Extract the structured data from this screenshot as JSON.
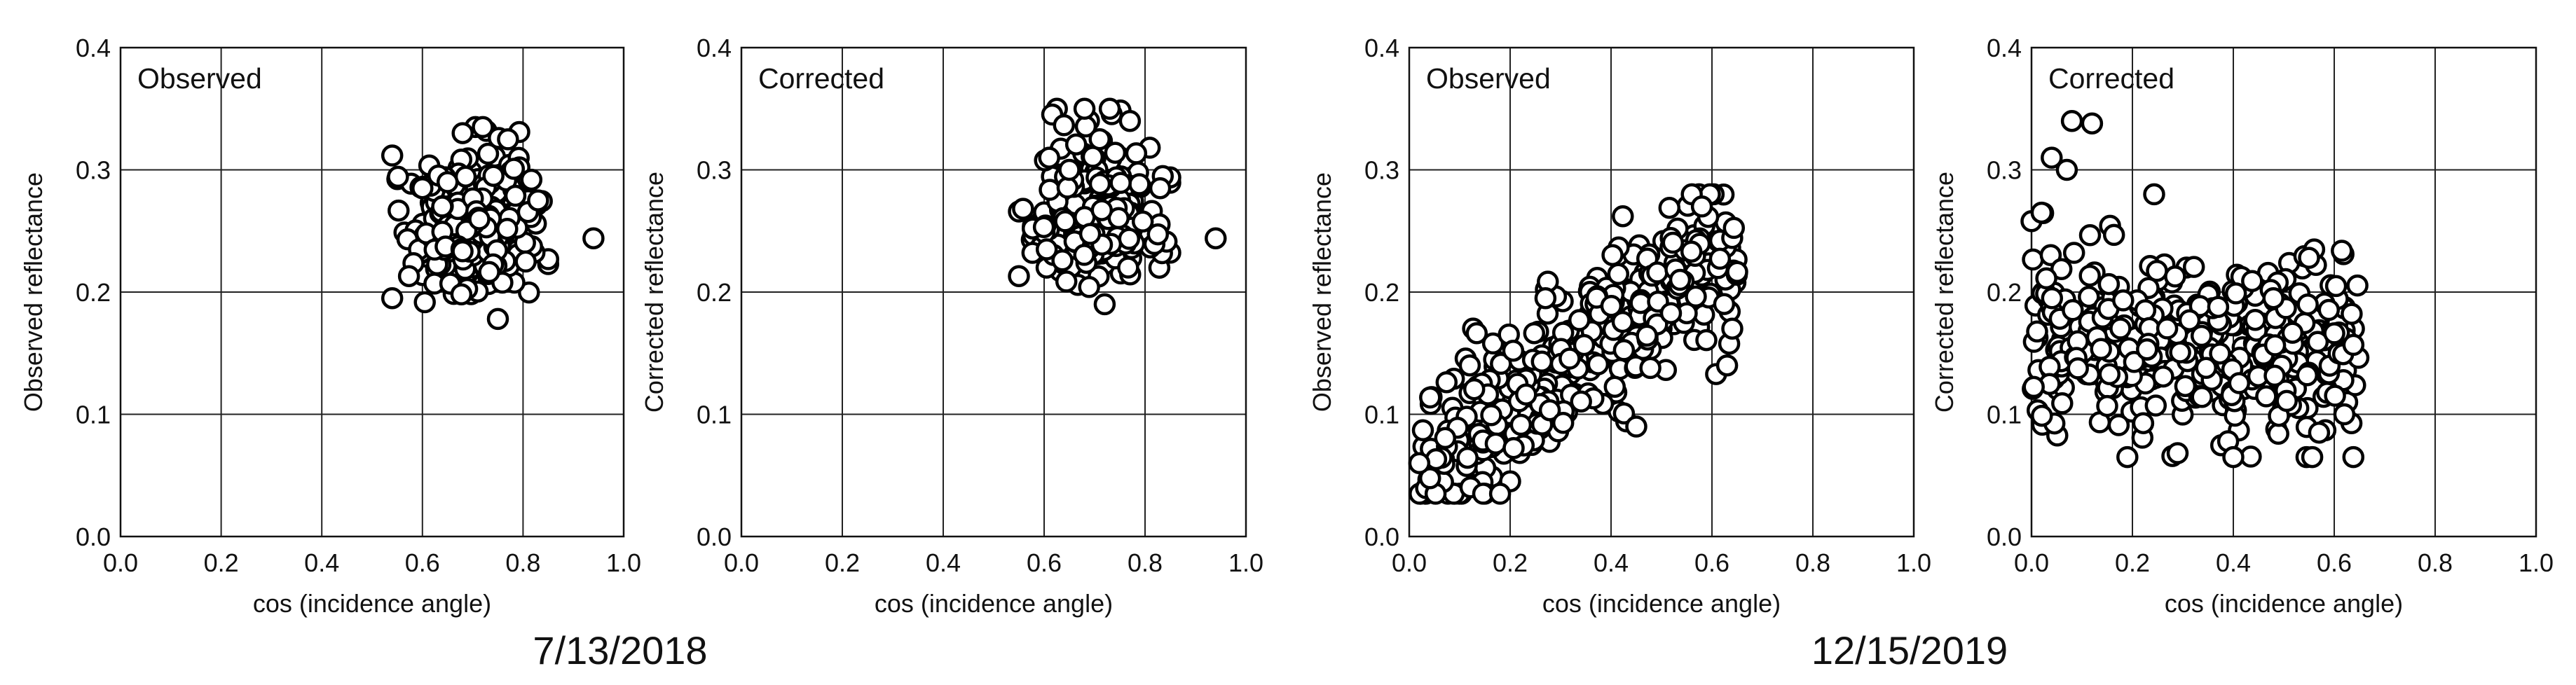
{
  "figure": {
    "dates": [
      "7/13/2018",
      "12/15/2019"
    ]
  },
  "chart_data": [
    {
      "type": "scatter",
      "title": "Observed",
      "xlabel": "cos (incidence angle)",
      "ylabel": "Observed reflectance",
      "xlim": [
        0,
        1
      ],
      "ylim": [
        0,
        0.4
      ],
      "xticks": [
        "0.0",
        "0.2",
        "0.4",
        "0.6",
        "0.8",
        "1.0"
      ],
      "yticks": [
        "0.0",
        "0.1",
        "0.2",
        "0.3",
        "0.4"
      ],
      "grid": true,
      "date": "7/13/2018",
      "cluster": {
        "x_range": [
          0.54,
          0.85
        ],
        "y_range": [
          0.18,
          0.335
        ],
        "n": 320,
        "trend": "none"
      },
      "points": [
        [
          0.94,
          0.244
        ],
        [
          0.54,
          0.195
        ],
        [
          0.68,
          0.33
        ],
        [
          0.72,
          0.335
        ],
        [
          0.77,
          0.325
        ],
        [
          0.6,
          0.285
        ],
        [
          0.75,
          0.178
        ],
        [
          0.65,
          0.29
        ],
        [
          0.83,
          0.275
        ]
      ]
    },
    {
      "type": "scatter",
      "title": "Corrected",
      "xlabel": "cos (incidence angle)",
      "ylabel": "Corrected reflectance",
      "xlim": [
        0,
        1
      ],
      "ylim": [
        0,
        0.4
      ],
      "xticks": [
        "0.0",
        "0.2",
        "0.4",
        "0.6",
        "0.8",
        "1.0"
      ],
      "yticks": [
        "0.0",
        "0.1",
        "0.2",
        "0.3",
        "0.4"
      ],
      "grid": true,
      "date": "7/13/2018",
      "cluster": {
        "x_range": [
          0.55,
          0.85
        ],
        "y_range": [
          0.19,
          0.35
        ],
        "n": 320,
        "trend": "none"
      },
      "points": [
        [
          0.94,
          0.244
        ],
        [
          0.68,
          0.35
        ],
        [
          0.73,
          0.35
        ],
        [
          0.77,
          0.34
        ],
        [
          0.61,
          0.31
        ],
        [
          0.55,
          0.213
        ],
        [
          0.72,
          0.19
        ],
        [
          0.65,
          0.3
        ],
        [
          0.83,
          0.285
        ]
      ]
    },
    {
      "type": "scatter",
      "title": "Observed",
      "xlabel": "cos (incidence angle)",
      "ylabel": "Observed reflectance",
      "xlim": [
        0,
        1
      ],
      "ylim": [
        0,
        0.4
      ],
      "xticks": [
        "0.0",
        "0.2",
        "0.4",
        "0.6",
        "0.8",
        "1.0"
      ],
      "yticks": [
        "0.0",
        "0.1",
        "0.2",
        "0.3",
        "0.4"
      ],
      "grid": true,
      "date": "12/15/2019",
      "cluster": {
        "x_range": [
          0.02,
          0.65
        ],
        "y_range": [
          0.035,
          0.28
        ],
        "n": 420,
        "trend": "rising",
        "slope": 0.3,
        "intercept": 0.045
      },
      "points": [
        [
          0.02,
          0.06
        ],
        [
          0.56,
          0.28
        ],
        [
          0.58,
          0.27
        ],
        [
          0.27,
          0.195
        ],
        [
          0.18,
          0.035
        ],
        [
          0.45,
          0.09
        ],
        [
          0.63,
          0.14
        ],
        [
          0.12,
          0.14
        ]
      ]
    },
    {
      "type": "scatter",
      "title": "Corrected",
      "xlabel": "cos (incidence angle)",
      "ylabel": "Corrected reflectance",
      "xlim": [
        0,
        1
      ],
      "ylim": [
        0,
        0.4
      ],
      "xticks": [
        "0.0",
        "0.2",
        "0.4",
        "0.6",
        "0.8",
        "1.0"
      ],
      "yticks": [
        "0.0",
        "0.1",
        "0.2",
        "0.3",
        "0.4"
      ],
      "grid": true,
      "date": "12/15/2019",
      "cluster": {
        "x_range": [
          0.0,
          0.65
        ],
        "y_range": [
          0.065,
          0.28
        ],
        "n": 420,
        "trend": "flat",
        "center": 0.16
      },
      "points": [
        [
          0.08,
          0.34
        ],
        [
          0.12,
          0.338
        ],
        [
          0.04,
          0.31
        ],
        [
          0.07,
          0.3
        ],
        [
          0.0,
          0.258
        ],
        [
          0.02,
          0.265
        ],
        [
          0.19,
          0.065
        ],
        [
          0.55,
          0.228
        ],
        [
          0.57,
          0.085
        ],
        [
          0.62,
          0.1
        ]
      ]
    }
  ]
}
